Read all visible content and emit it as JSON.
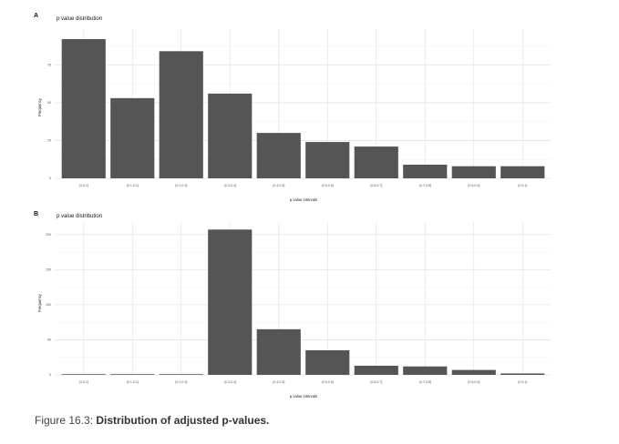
{
  "figure": {
    "caption_prefix": "Figure 16.3: ",
    "caption_title": "Distribution of adjusted p-values."
  },
  "chart_data": [
    {
      "panel": "A",
      "type": "bar",
      "title": "p value distribution",
      "xlabel": "p value intervals",
      "ylabel": "Frequency",
      "categories": [
        "(0,0.1]",
        "(0.1,0.2]",
        "(0.2,0.3]",
        "(0.3,0.4]",
        "(0.4,0.5]",
        "(0.5,0.6]",
        "(0.6,0.7]",
        "(0.7,0.8]",
        "(0.8,0.9]",
        "(0.9,1]"
      ],
      "values": [
        92,
        53,
        84,
        56,
        30,
        24,
        21,
        9,
        8,
        8
      ],
      "ylim": [
        0,
        95
      ],
      "yticks": [
        0,
        25,
        50,
        75
      ],
      "bar_color": "#555555",
      "grid": true
    },
    {
      "panel": "B",
      "type": "bar",
      "title": "p value distribution",
      "xlabel": "p value intervals",
      "ylabel": "Frequency",
      "categories": [
        "(0,0.1]",
        "(0.1,0.2]",
        "(0.2,0.3]",
        "(0.3,0.4]",
        "(0.4,0.5]",
        "(0.5,0.6]",
        "(0.6,0.7]",
        "(0.7,0.8]",
        "(0.8,0.9]",
        "(0.9,1]"
      ],
      "values": [
        1,
        1,
        1,
        207,
        65,
        35,
        13,
        12,
        7,
        2
      ],
      "ylim": [
        0,
        210
      ],
      "yticks": [
        0,
        50,
        100,
        150,
        200
      ],
      "bar_color": "#555555",
      "grid": true
    }
  ]
}
